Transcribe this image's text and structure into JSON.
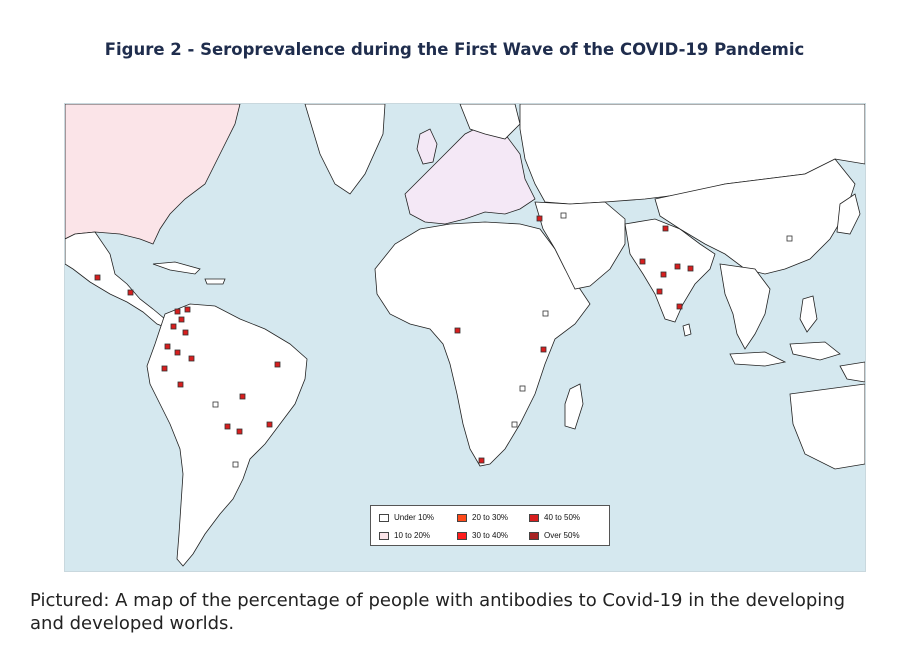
{
  "title": "Figure 2 - Seroprevalence during the First Wave of the COVID-19 Pandemic",
  "caption": "Pictured: A map of the percentage of people with antibodies to Covid-19 in the developing and developed worlds.",
  "colors": {
    "ocean": "#d5e8ef",
    "land": "#ffffff",
    "border": "#222222",
    "north_america_shade": "#fbe4e8",
    "europe_shade": "#f4e8f6"
  },
  "legend": [
    {
      "label": "Under 10%",
      "color": "#ffffff"
    },
    {
      "label": "20 to 30%",
      "color": "#ff4a1a"
    },
    {
      "label": "40 to 50%",
      "color": "#d81e1e"
    },
    {
      "label": "10 to 20%",
      "color": "#fbe4e8"
    },
    {
      "label": "30 to 40%",
      "color": "#ff1c1c"
    },
    {
      "label": "Over 50%",
      "color": "#a82424"
    }
  ]
}
